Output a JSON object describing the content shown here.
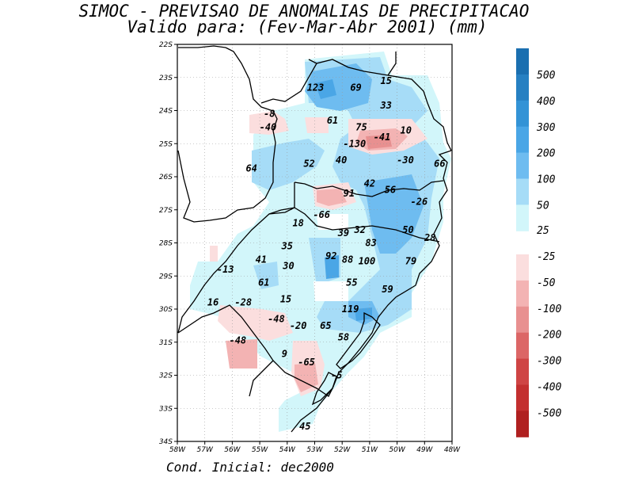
{
  "title": {
    "line1": "SIMOC - PREVISAO DE ANOMALIAS DE PRECIPITACAO",
    "line2": "Valido para: (Fev-Mar-Abr 2001) (mm)"
  },
  "footer": "Cond. Inicial: dec2000",
  "axes": {
    "lat_ticks": [
      "22S",
      "23S",
      "24S",
      "25S",
      "26S",
      "27S",
      "28S",
      "29S",
      "30S",
      "31S",
      "32S",
      "33S",
      "34S"
    ],
    "lon_ticks": [
      "58W",
      "57W",
      "56W",
      "55W",
      "54W",
      "53W",
      "52W",
      "51W",
      "50W",
      "49W",
      "48W"
    ]
  },
  "colors": {
    "pos_500": "#1a6fb0",
    "pos_400": "#2680c2",
    "pos_300": "#3393d6",
    "pos_200": "#4aa6e6",
    "pos_100": "#6ebcf0",
    "pos_50": "#a6dcf7",
    "pos_25": "#d2f6fa",
    "neg_25": "#fbdede",
    "neg_50": "#f3b3b3",
    "neg_100": "#e89090",
    "neg_200": "#dc6666",
    "neg_300": "#cf4444",
    "neg_400": "#c32f2f",
    "neg_500": "#b02020",
    "boundary": "#000000",
    "grid": "#999999"
  },
  "colorbar": {
    "positive_labels": [
      "500",
      "400",
      "300",
      "200",
      "100",
      "50",
      "25"
    ],
    "negative_labels": [
      "-25",
      "-50",
      "-100",
      "-200",
      "-300",
      "-400",
      "-500"
    ]
  },
  "value_labels": [
    {
      "text": "123",
      "lon": -52.97,
      "lat": -23.3
    },
    {
      "text": "69",
      "lon": -51.5,
      "lat": -23.3
    },
    {
      "text": "15",
      "lon": -50.4,
      "lat": -23.1
    },
    {
      "text": "33",
      "lon": -50.4,
      "lat": -23.85
    },
    {
      "text": "-8",
      "lon": -54.65,
      "lat": -24.1
    },
    {
      "text": "-40",
      "lon": -54.7,
      "lat": -24.5
    },
    {
      "text": "61",
      "lon": -52.35,
      "lat": -24.3
    },
    {
      "text": "75",
      "lon": -51.3,
      "lat": -24.5
    },
    {
      "text": "10",
      "lon": -49.68,
      "lat": -24.6
    },
    {
      "text": "-41",
      "lon": -50.55,
      "lat": -24.8
    },
    {
      "text": "-130",
      "lon": -51.55,
      "lat": -25.0
    },
    {
      "text": "40",
      "lon": -52.03,
      "lat": -25.5
    },
    {
      "text": "52",
      "lon": -53.2,
      "lat": -25.6
    },
    {
      "text": "64",
      "lon": -55.3,
      "lat": -25.75
    },
    {
      "text": "-30",
      "lon": -49.7,
      "lat": -25.5
    },
    {
      "text": "66",
      "lon": -48.45,
      "lat": -25.6
    },
    {
      "text": "42",
      "lon": -51.0,
      "lat": -26.2
    },
    {
      "text": "56",
      "lon": -50.25,
      "lat": -26.4
    },
    {
      "text": "91",
      "lon": -51.75,
      "lat": -26.5
    },
    {
      "text": "-26",
      "lon": -49.2,
      "lat": -26.75
    },
    {
      "text": "-66",
      "lon": -52.75,
      "lat": -27.15
    },
    {
      "text": "18",
      "lon": -53.6,
      "lat": -27.4
    },
    {
      "text": "39",
      "lon": -51.95,
      "lat": -27.7
    },
    {
      "text": "32",
      "lon": -51.35,
      "lat": -27.6
    },
    {
      "text": "50",
      "lon": -49.6,
      "lat": -27.6
    },
    {
      "text": "28",
      "lon": -48.8,
      "lat": -27.85
    },
    {
      "text": "83",
      "lon": -50.95,
      "lat": -28.0
    },
    {
      "text": "35",
      "lon": -54.0,
      "lat": -28.1
    },
    {
      "text": "41",
      "lon": -54.95,
      "lat": -28.5
    },
    {
      "text": "92",
      "lon": -52.4,
      "lat": -28.4
    },
    {
      "text": "88",
      "lon": -51.8,
      "lat": -28.5
    },
    {
      "text": "100",
      "lon": -51.1,
      "lat": -28.55
    },
    {
      "text": "79",
      "lon": -49.5,
      "lat": -28.55
    },
    {
      "text": "30",
      "lon": -53.95,
      "lat": -28.7
    },
    {
      "text": "-13",
      "lon": -56.25,
      "lat": -28.8
    },
    {
      "text": "61",
      "lon": -54.85,
      "lat": -29.2
    },
    {
      "text": "55",
      "lon": -51.65,
      "lat": -29.2
    },
    {
      "text": "59",
      "lon": -50.35,
      "lat": -29.4
    },
    {
      "text": "15",
      "lon": -54.05,
      "lat": -29.7
    },
    {
      "text": "16",
      "lon": -56.7,
      "lat": -29.8
    },
    {
      "text": "-28",
      "lon": -55.6,
      "lat": -29.8
    },
    {
      "text": "119",
      "lon": -51.7,
      "lat": -30.0
    },
    {
      "text": "-48",
      "lon": -54.4,
      "lat": -30.3
    },
    {
      "text": "-20",
      "lon": -53.6,
      "lat": -30.5
    },
    {
      "text": "65",
      "lon": -52.6,
      "lat": -30.5
    },
    {
      "text": "58",
      "lon": -51.95,
      "lat": -30.85
    },
    {
      "text": "-48",
      "lon": -55.8,
      "lat": -30.95
    },
    {
      "text": "9",
      "lon": -54.1,
      "lat": -31.35
    },
    {
      "text": "-65",
      "lon": -53.3,
      "lat": -31.6
    },
    {
      "text": "-5",
      "lon": -52.2,
      "lat": -32.0
    },
    {
      "text": "45",
      "lon": -53.35,
      "lat": -33.55
    }
  ]
}
